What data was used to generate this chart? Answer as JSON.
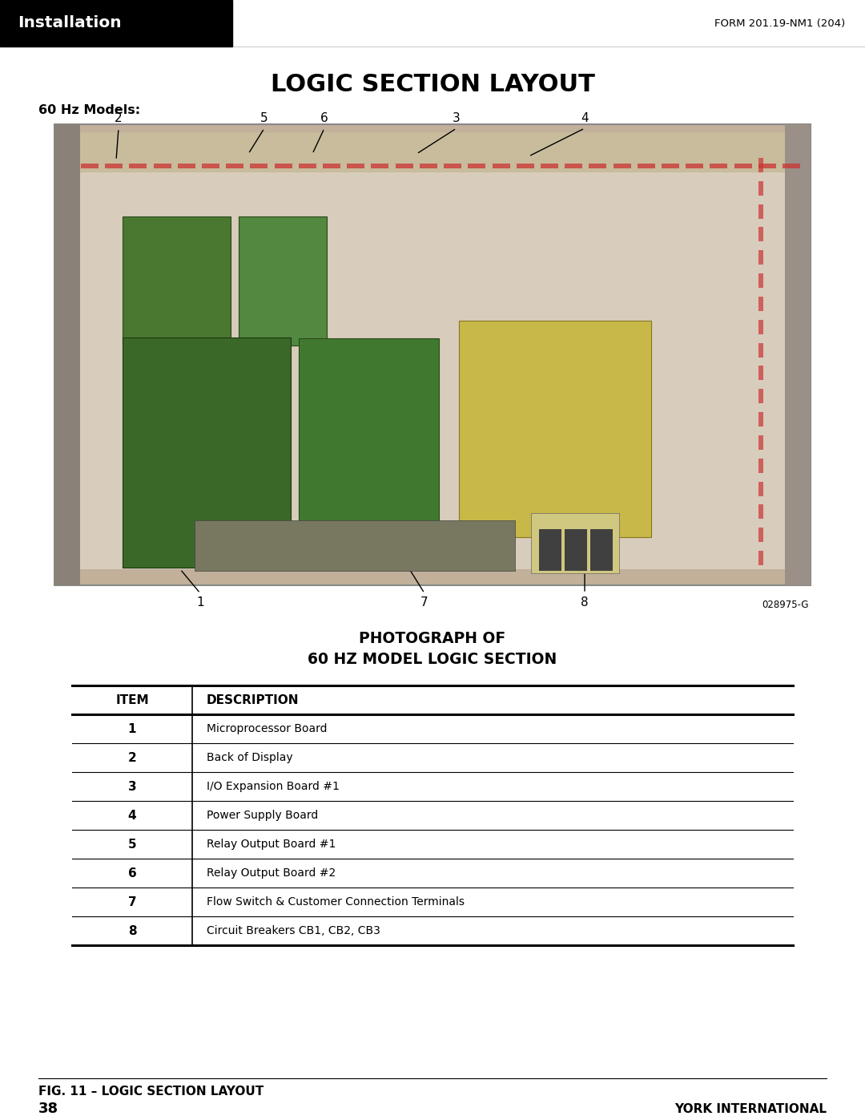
{
  "page_title": "LOGIC SECTION LAYOUT",
  "header_label": "Installation",
  "form_number": "FORM 201.19-NM1 (204)",
  "subtitle": "60 Hz Models:",
  "figure_code": "028975-G",
  "caption_title_line1": "PHOTOGRAPH OF",
  "caption_title_line2": "60 HZ MODEL LOGIC SECTION",
  "table_headers": [
    "ITEM",
    "DESCRIPTION"
  ],
  "table_rows": [
    [
      "1",
      "Microprocessor Board"
    ],
    [
      "2",
      "Back of Display"
    ],
    [
      "3",
      "I/O Expansion Board #1"
    ],
    [
      "4",
      "Power Supply Board"
    ],
    [
      "5",
      "Relay Output Board #1"
    ],
    [
      "6",
      "Relay Output Board #2"
    ],
    [
      "7",
      "Flow Switch & Customer Connection Terminals"
    ],
    [
      "8",
      "Circuit Breakers CB1, CB2, CB3"
    ]
  ],
  "fig_caption": "FIG. 11 – LOGIC SECTION LAYOUT",
  "page_number": "38",
  "company": "YORK INTERNATIONAL",
  "background_color": "#ffffff",
  "header_bg_color": "#000000",
  "header_text_color": "#ffffff"
}
